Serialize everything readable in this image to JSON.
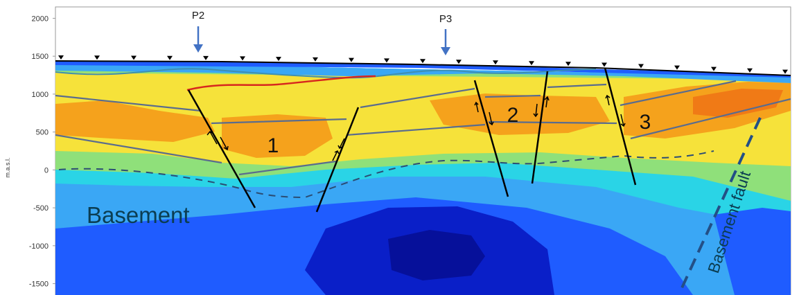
{
  "y_axis": {
    "title": "m.a.s.l.",
    "ticks": [
      "2000",
      "1500",
      "1000",
      "500",
      "0",
      "-500",
      "-1000",
      "-1500"
    ]
  },
  "wells": [
    {
      "label": "P2"
    },
    {
      "label": "P3"
    }
  ],
  "blocks": [
    {
      "label": "1"
    },
    {
      "label": "2"
    },
    {
      "label": "3"
    }
  ],
  "regions": {
    "basement": "Basement",
    "basement_fault": "Basement fault"
  },
  "colors": {
    "deep_blue": "#0a1fc8",
    "blue": "#1f5cff",
    "light_blue": "#3aa7f5",
    "cyan": "#2ad4e6",
    "green": "#8fe07a",
    "yellow": "#f6e23a",
    "orange": "#f5a21c",
    "red_orange": "#f07a16",
    "horizon": "#5a6c8e",
    "red_reflector": "#d7261e",
    "well_arrow": "#4272c4",
    "basement_fault": "#234f86"
  },
  "elevation_range": [
    -1650,
    2150
  ]
}
